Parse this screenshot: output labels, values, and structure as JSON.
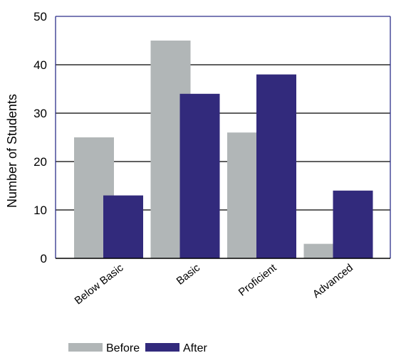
{
  "chart_data": {
    "type": "bar",
    "categories": [
      "Below Basic",
      "Basic",
      "Proficient",
      "Advanced"
    ],
    "series": [
      {
        "name": "Before",
        "color": "#b1b6b7",
        "values": [
          25,
          45,
          26,
          3
        ]
      },
      {
        "name": "After",
        "color": "#322a7c",
        "values": [
          13,
          34,
          38,
          14
        ]
      }
    ],
    "ylabel": "Number of Students",
    "ylim": [
      0,
      50
    ],
    "yticks": [
      0,
      10,
      20,
      30,
      40,
      50
    ],
    "grid": true,
    "legend_position": "bottom"
  }
}
